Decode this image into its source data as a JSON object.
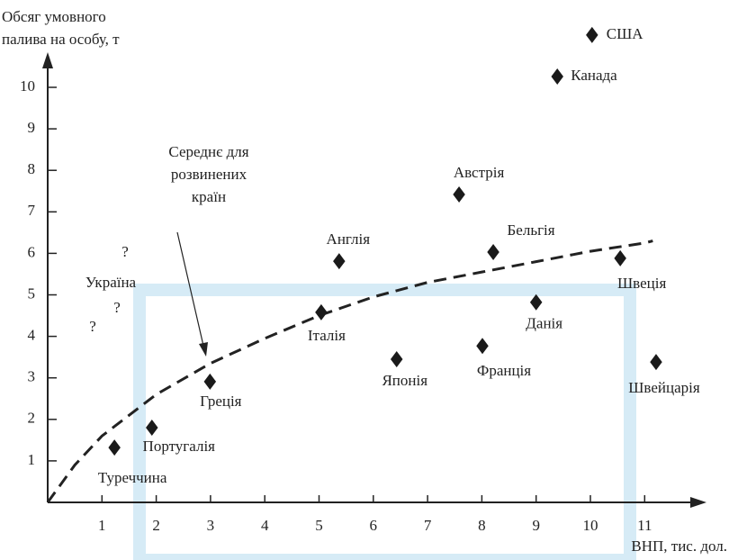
{
  "chart_data": {
    "type": "scatter",
    "ylabel": [
      "Обсяг умовного",
      "палива на особу,  т"
    ],
    "xlabel": "ВНП,  тис. дол.",
    "categories": [
      "США",
      "Канада",
      "Австрія",
      "Бельгія",
      "Англія",
      "Швеція",
      "Данія",
      "Італія",
      "Франція",
      "Японія",
      "Швейцарія",
      "Греція",
      "Португалія",
      "Туреччина"
    ],
    "x": [
      10.03,
      9.39,
      7.58,
      8.21,
      5.37,
      10.55,
      9.0,
      5.04,
      8.01,
      6.43,
      11.21,
      2.99,
      1.92,
      1.23
    ],
    "values": [
      11.26,
      10.26,
      7.42,
      6.03,
      5.81,
      5.88,
      4.82,
      4.58,
      3.77,
      3.45,
      3.38,
      2.91,
      1.8,
      1.32
    ],
    "color": "#1a1a1a",
    "xlim": [
      0,
      12.2
    ],
    "ylim": [
      0,
      11.7
    ],
    "xticks": [
      1,
      2,
      3,
      4,
      5,
      6,
      7,
      8,
      9,
      10,
      11
    ],
    "yticks": [
      1,
      2,
      3,
      4,
      5,
      6,
      7,
      8,
      9,
      10
    ],
    "curve": {
      "x": [
        0,
        0.5,
        1,
        2,
        3,
        4,
        5,
        6,
        7,
        8,
        9,
        10,
        11,
        11.15
      ],
      "y": [
        0,
        0.9,
        1.6,
        2.6,
        3.35,
        3.95,
        4.5,
        4.95,
        5.3,
        5.55,
        5.8,
        6.05,
        6.25,
        6.3
      ]
    },
    "annotation": [
      "Середнє для",
      "розвинених",
      "країн"
    ],
    "ukraine": {
      "label": "Україна",
      "marks": [
        "?",
        "?",
        "?"
      ]
    }
  }
}
